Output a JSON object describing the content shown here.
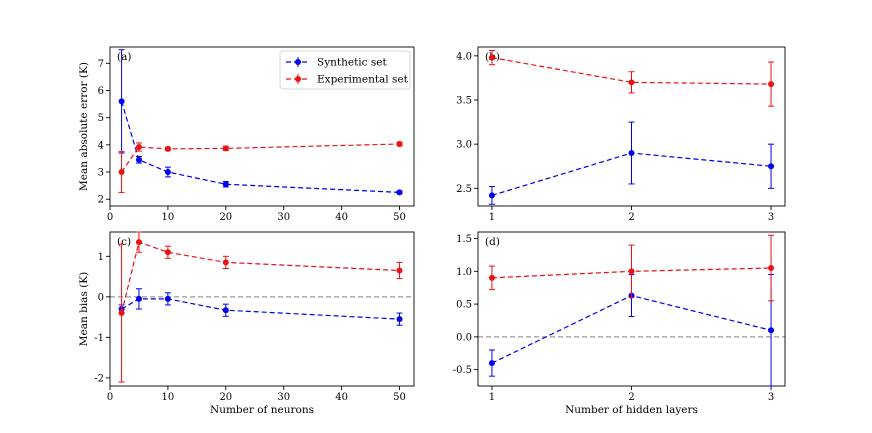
{
  "colors": {
    "synthetic": "#0000ee",
    "experimental": "#ee1111",
    "zero_line": "#808080",
    "axes": "#000000"
  },
  "chart_data": [
    {
      "type": "line",
      "panel": "(a)",
      "xlabel": "",
      "ylabel": "Mean absolute error (K)",
      "xlim": [
        0,
        52.5
      ],
      "ylim": [
        1.75,
        7.6
      ],
      "xticks": [
        0,
        10,
        20,
        30,
        40,
        50
      ],
      "xtick_labels": [
        "0",
        "10",
        "20",
        "30",
        "40",
        "50"
      ],
      "yticks": [
        2,
        3,
        4,
        5,
        6,
        7
      ],
      "ytick_labels": [
        "2",
        "3",
        "4",
        "5",
        "6",
        "7"
      ],
      "zero_line": false,
      "legend": {
        "placement": "top-right",
        "entries": [
          "Synthetic set",
          "Experimental set"
        ]
      },
      "series": [
        {
          "name": "Synthetic set",
          "color_key": "synthetic",
          "x": [
            2,
            5,
            10,
            20,
            50
          ],
          "y": [
            5.6,
            3.45,
            3.0,
            2.55,
            2.25
          ],
          "err": [
            1.9,
            0.12,
            0.18,
            0.1,
            0.05
          ]
        },
        {
          "name": "Experimental set",
          "color_key": "experimental",
          "x": [
            2,
            5,
            10,
            20,
            50
          ],
          "y": [
            3.0,
            3.92,
            3.85,
            3.87,
            4.03
          ],
          "err": [
            0.75,
            0.15,
            0.05,
            0.08,
            0.07
          ]
        }
      ]
    },
    {
      "type": "line",
      "panel": "(b)",
      "xlabel": "",
      "ylabel": "",
      "xlim": [
        0.9,
        3.1
      ],
      "ylim": [
        2.3,
        4.1
      ],
      "xticks": [
        1,
        2,
        3
      ],
      "xtick_labels": [
        "1",
        "2",
        "3"
      ],
      "yticks": [
        2.5,
        3.0,
        3.5,
        4.0
      ],
      "ytick_labels": [
        "2.5",
        "3.0",
        "3.5",
        "4.0"
      ],
      "zero_line": false,
      "series": [
        {
          "name": "Synthetic set",
          "color_key": "synthetic",
          "x": [
            1,
            2,
            3
          ],
          "y": [
            2.42,
            2.9,
            2.75
          ],
          "err": [
            0.1,
            0.35,
            0.25
          ]
        },
        {
          "name": "Experimental set",
          "color_key": "experimental",
          "x": [
            1,
            2,
            3
          ],
          "y": [
            3.98,
            3.7,
            3.68
          ],
          "err": [
            0.08,
            0.12,
            0.25
          ]
        }
      ]
    },
    {
      "type": "line",
      "panel": "(c)",
      "xlabel": "Number of neurons",
      "ylabel": "Mean bias (K)",
      "xlim": [
        0,
        52.5
      ],
      "ylim": [
        -2.2,
        1.6
      ],
      "xticks": [
        0,
        10,
        20,
        30,
        40,
        50
      ],
      "xtick_labels": [
        "0",
        "10",
        "20",
        "30",
        "40",
        "50"
      ],
      "yticks": [
        -2,
        -1,
        0,
        1
      ],
      "ytick_labels": [
        "-2",
        "-1",
        "0",
        "1"
      ],
      "zero_line": true,
      "series": [
        {
          "name": "Synthetic set",
          "color_key": "synthetic",
          "x": [
            2,
            5,
            10,
            20,
            50
          ],
          "y": [
            -0.3,
            -0.05,
            -0.05,
            -0.33,
            -0.55
          ],
          "err": [
            0.1,
            0.25,
            0.15,
            0.15,
            0.15
          ]
        },
        {
          "name": "Experimental set",
          "color_key": "experimental",
          "x": [
            2,
            5,
            10,
            20,
            50
          ],
          "y": [
            -0.4,
            1.35,
            1.1,
            0.85,
            0.65
          ],
          "err": [
            1.7,
            0.25,
            0.15,
            0.15,
            0.2
          ]
        }
      ]
    },
    {
      "type": "line",
      "panel": "(d)",
      "xlabel": "Number of hidden layers",
      "ylabel": "",
      "xlim": [
        0.9,
        3.1
      ],
      "ylim": [
        -0.75,
        1.6
      ],
      "xticks": [
        1,
        2,
        3
      ],
      "xtick_labels": [
        "1",
        "2",
        "3"
      ],
      "yticks": [
        -0.5,
        0.0,
        0.5,
        1.0,
        1.5
      ],
      "ytick_labels": [
        "-0.5",
        "0.0",
        "0.5",
        "1.0",
        "1.5"
      ],
      "zero_line": true,
      "series": [
        {
          "name": "Synthetic set",
          "color_key": "synthetic",
          "x": [
            1,
            2,
            3
          ],
          "y": [
            -0.4,
            0.63,
            0.1
          ],
          "err": [
            0.2,
            0.32,
            0.85
          ]
        },
        {
          "name": "Experimental set",
          "color_key": "experimental",
          "x": [
            1,
            2,
            3
          ],
          "y": [
            0.9,
            1.0,
            1.05
          ],
          "err": [
            0.18,
            0.4,
            0.5
          ]
        }
      ]
    }
  ]
}
